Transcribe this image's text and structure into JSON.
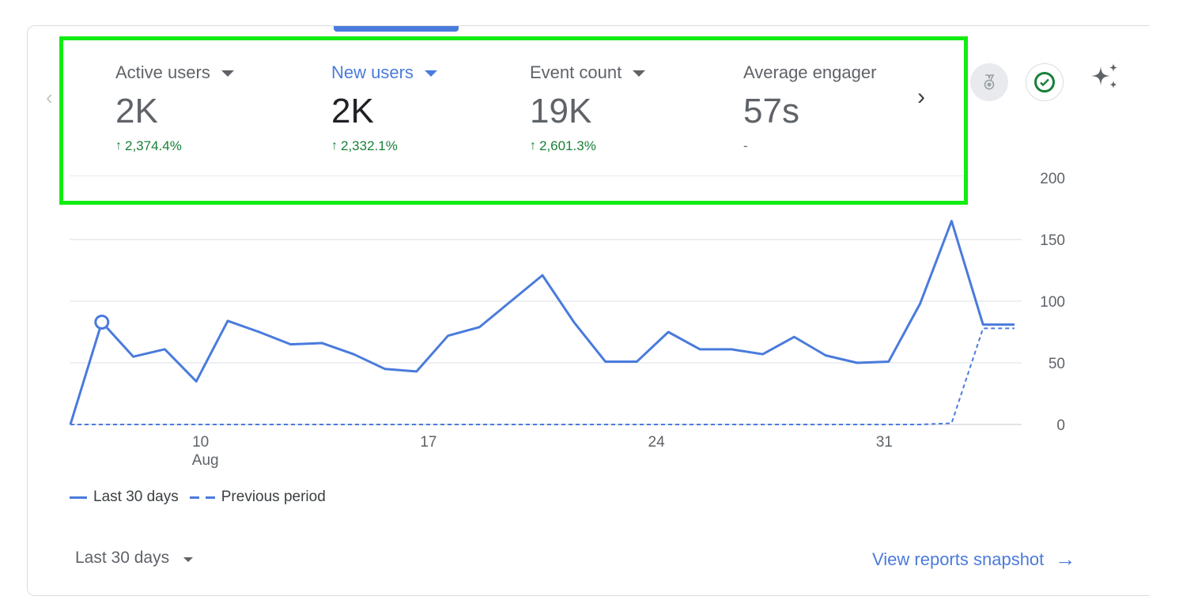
{
  "metrics": [
    {
      "label": "Active users",
      "value": "2K",
      "change": "2,374.4%",
      "trend": "up"
    },
    {
      "label": "New users",
      "value": "2K",
      "change": "2,332.1%",
      "trend": "up",
      "selected": true
    },
    {
      "label": "Event count",
      "value": "19K",
      "change": "2,601.3%",
      "trend": "up"
    },
    {
      "label": "Average engager",
      "value": "57s",
      "change": "-",
      "trend": "none"
    }
  ],
  "icons": {
    "prev": "chevron-left-icon",
    "next": "chevron-right-icon",
    "badge": "medal-icon",
    "check": "check-circle-icon",
    "insights": "sparkle-icon",
    "arrow_up": "↑",
    "snapshot_arrow": "→"
  },
  "legend": {
    "current": "Last 30 days",
    "previous": "Previous period"
  },
  "footer": {
    "date_range": "Last 30 days",
    "snapshot_link": "View reports snapshot"
  },
  "colors": {
    "accent": "#4a7bdc",
    "positive": "#188038",
    "highlight": "#12ec12"
  },
  "chart_data": {
    "type": "line",
    "x_tick_labels": [
      {
        "day": 10,
        "label": "10",
        "sublabel": "Aug"
      },
      {
        "day": 17,
        "label": "17"
      },
      {
        "day": 24,
        "label": "24"
      },
      {
        "day": 31,
        "label": "31"
      }
    ],
    "y_ticks": [
      0,
      50,
      100,
      150,
      200
    ],
    "ylim": [
      0,
      200
    ],
    "grid": true,
    "legend_position": "bottom-left",
    "series": [
      {
        "name": "Last 30 days",
        "style": "solid",
        "x": [
          6,
          7,
          8,
          9,
          10,
          11,
          12,
          13,
          14,
          15,
          16,
          17,
          18,
          19,
          20,
          21,
          22,
          23,
          24,
          25,
          26,
          27,
          28,
          29,
          30,
          31,
          32,
          33,
          34,
          35,
          36
        ],
        "values": [
          0,
          83,
          55,
          61,
          35,
          84,
          75,
          65,
          66,
          57,
          45,
          43,
          72,
          79,
          100,
          121,
          83,
          51,
          51,
          75,
          61,
          61,
          57,
          71,
          56,
          50,
          51,
          98,
          165,
          81,
          81
        ],
        "highlighted_point_index": 1
      },
      {
        "name": "Previous period",
        "style": "dashed",
        "x": [
          6,
          7,
          8,
          9,
          10,
          11,
          12,
          13,
          14,
          15,
          16,
          17,
          18,
          19,
          20,
          21,
          22,
          23,
          24,
          25,
          26,
          27,
          28,
          29,
          30,
          31,
          32,
          33,
          34,
          35,
          36
        ],
        "values": [
          0,
          0,
          0,
          0,
          0,
          0,
          0,
          0,
          0,
          0,
          0,
          0,
          0,
          0,
          0,
          0,
          0,
          0,
          0,
          0,
          0,
          0,
          0,
          0,
          0,
          0,
          0,
          0,
          1,
          78,
          78
        ]
      }
    ]
  }
}
